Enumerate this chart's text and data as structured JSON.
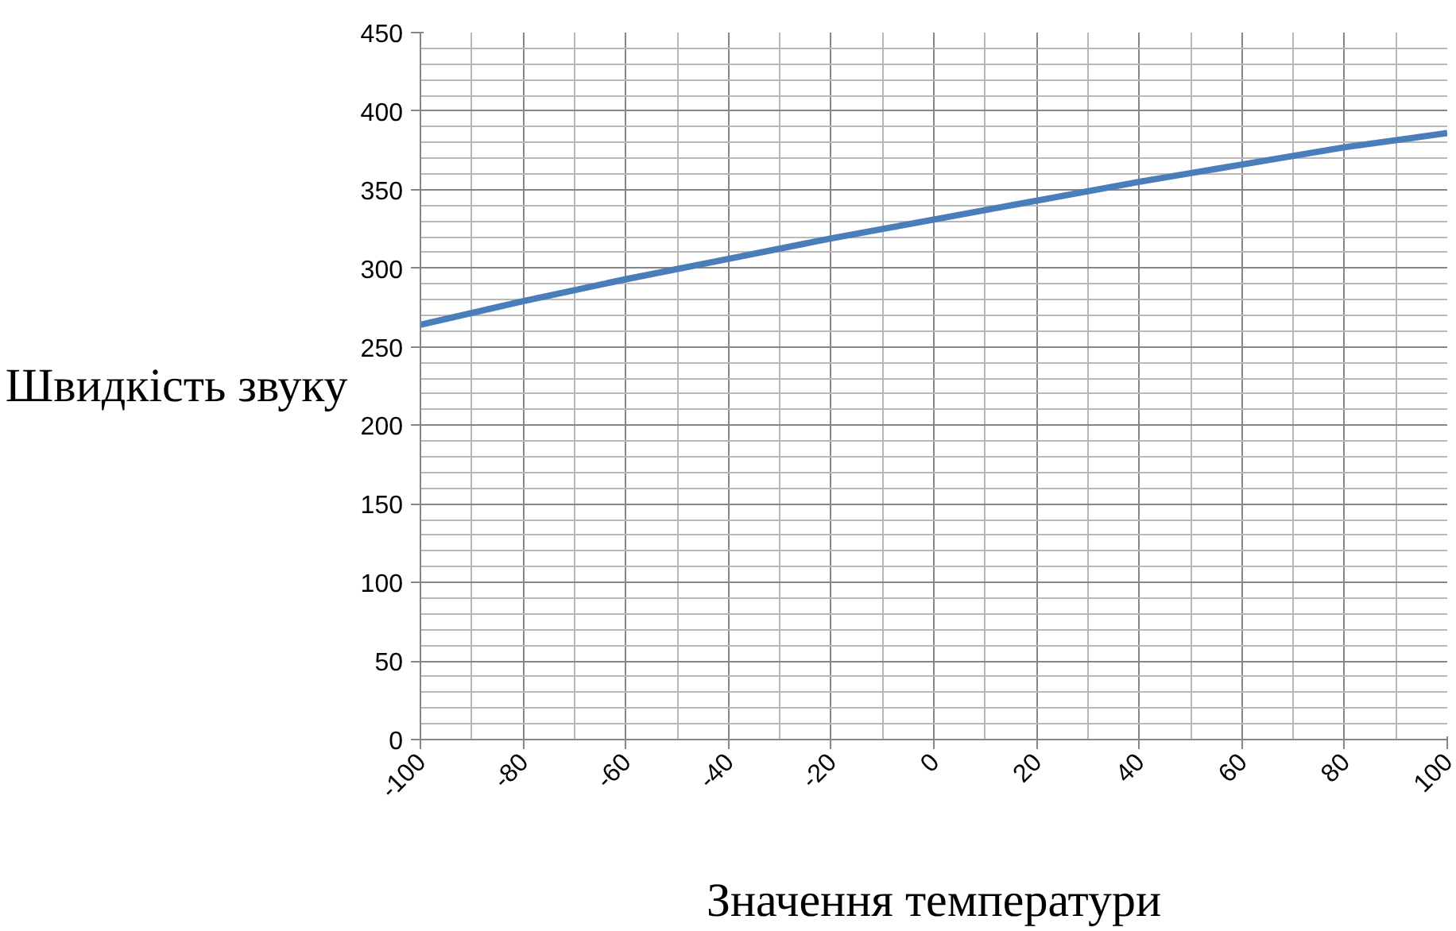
{
  "chart_data": {
    "type": "line",
    "xlabel": "Значення температури",
    "ylabel": "Швидкість звуку",
    "x": [
      -100,
      -80,
      -60,
      -40,
      -20,
      0,
      20,
      40,
      60,
      80,
      100
    ],
    "series": [
      {
        "color": "#4a7ebb",
        "values": [
          264,
          279,
          293,
          306,
          319,
          331,
          343,
          355,
          366,
          377,
          386
        ]
      }
    ],
    "xlim": [
      -100,
      100
    ],
    "xticks": [
      -100,
      -80,
      -60,
      -40,
      -20,
      0,
      20,
      40,
      60,
      80,
      100
    ],
    "ylim": [
      0,
      450
    ],
    "yticks": [
      0,
      50,
      100,
      150,
      200,
      250,
      300,
      350,
      400,
      450
    ],
    "grid": true,
    "marker": "none",
    "line_style": "solid"
  }
}
